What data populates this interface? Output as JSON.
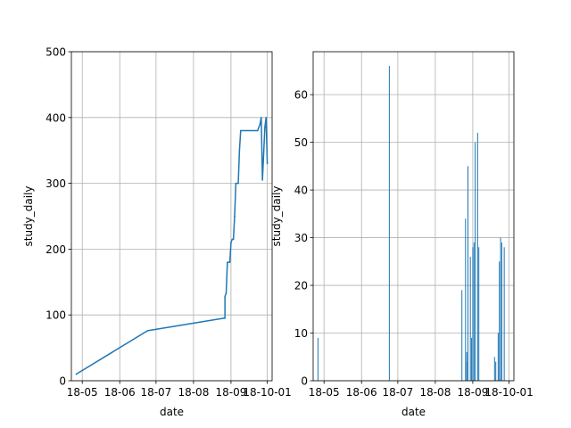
{
  "chart_data": [
    {
      "type": "line",
      "title": "",
      "xlabel": "date",
      "ylabel": "study_daily",
      "xlim": [
        "2018-04-22",
        "2018-10-05"
      ],
      "ylim": [
        0,
        500
      ],
      "grid": true,
      "color": "#1f77b4",
      "x_ticks": [
        {
          "date": "2018-05-01",
          "label": "18-05"
        },
        {
          "date": "2018-06-01",
          "label": "18-06"
        },
        {
          "date": "2018-07-01",
          "label": "18-07"
        },
        {
          "date": "2018-08-01",
          "label": "18-08"
        },
        {
          "date": "2018-09-01",
          "label": "18-09"
        },
        {
          "date": "2018-10-01",
          "label": "18-10-01"
        }
      ],
      "y_ticks": [
        0,
        100,
        200,
        300,
        400,
        500
      ],
      "points": [
        {
          "x": "2018-04-26",
          "y": 10
        },
        {
          "x": "2018-06-24",
          "y": 76
        },
        {
          "x": "2018-08-26",
          "y": 95
        },
        {
          "x": "2018-08-27",
          "y": 95
        },
        {
          "x": "2018-08-27",
          "y": 128
        },
        {
          "x": "2018-08-28",
          "y": 133
        },
        {
          "x": "2018-08-29",
          "y": 180
        },
        {
          "x": "2018-08-31",
          "y": 180
        },
        {
          "x": "2018-09-01",
          "y": 210
        },
        {
          "x": "2018-09-02",
          "y": 215
        },
        {
          "x": "2018-09-03",
          "y": 215
        },
        {
          "x": "2018-09-04",
          "y": 250
        },
        {
          "x": "2018-09-04",
          "y": 250
        },
        {
          "x": "2018-09-05",
          "y": 300
        },
        {
          "x": "2018-09-07",
          "y": 300
        },
        {
          "x": "2018-09-08",
          "y": 350
        },
        {
          "x": "2018-09-09",
          "y": 380
        },
        {
          "x": "2018-09-23",
          "y": 380
        },
        {
          "x": "2018-09-25",
          "y": 390
        },
        {
          "x": "2018-09-26",
          "y": 400
        },
        {
          "x": "2018-09-27",
          "y": 305
        },
        {
          "x": "2018-09-29",
          "y": 385
        },
        {
          "x": "2018-09-30",
          "y": 400
        },
        {
          "x": "2018-10-01",
          "y": 330
        }
      ]
    },
    {
      "type": "bar",
      "title": "",
      "xlabel": "date",
      "ylabel": "study_daily",
      "xlim": [
        "2018-04-22",
        "2018-10-05"
      ],
      "ylim": [
        0,
        69
      ],
      "grid": true,
      "color": "#1f77b4",
      "x_ticks": [
        {
          "date": "2018-05-01",
          "label": "18-05"
        },
        {
          "date": "2018-06-01",
          "label": "18-06"
        },
        {
          "date": "2018-07-01",
          "label": "18-07"
        },
        {
          "date": "2018-08-01",
          "label": "18-08"
        },
        {
          "date": "2018-09-01",
          "label": "18-09"
        },
        {
          "date": "2018-10-01",
          "label": "18-10-01"
        }
      ],
      "y_ticks": [
        0,
        10,
        20,
        30,
        40,
        50,
        60
      ],
      "bars": [
        {
          "x": "2018-04-26",
          "y": 9
        },
        {
          "x": "2018-06-24",
          "y": 66
        },
        {
          "x": "2018-08-23",
          "y": 19
        },
        {
          "x": "2018-08-26",
          "y": 34
        },
        {
          "x": "2018-08-27",
          "y": 6
        },
        {
          "x": "2018-08-27",
          "y": 4
        },
        {
          "x": "2018-08-28",
          "y": 45
        },
        {
          "x": "2018-08-30",
          "y": 26
        },
        {
          "x": "2018-08-31",
          "y": 9
        },
        {
          "x": "2018-09-01",
          "y": 28
        },
        {
          "x": "2018-09-02",
          "y": 29
        },
        {
          "x": "2018-09-03",
          "y": 50
        },
        {
          "x": "2018-09-05",
          "y": 52
        },
        {
          "x": "2018-09-06",
          "y": 28
        },
        {
          "x": "2018-09-19",
          "y": 5
        },
        {
          "x": "2018-09-20",
          "y": 4
        },
        {
          "x": "2018-09-22",
          "y": 10
        },
        {
          "x": "2018-09-23",
          "y": 25
        },
        {
          "x": "2018-09-24",
          "y": 30
        },
        {
          "x": "2018-09-25",
          "y": 29
        },
        {
          "x": "2018-09-27",
          "y": 28
        }
      ]
    }
  ]
}
